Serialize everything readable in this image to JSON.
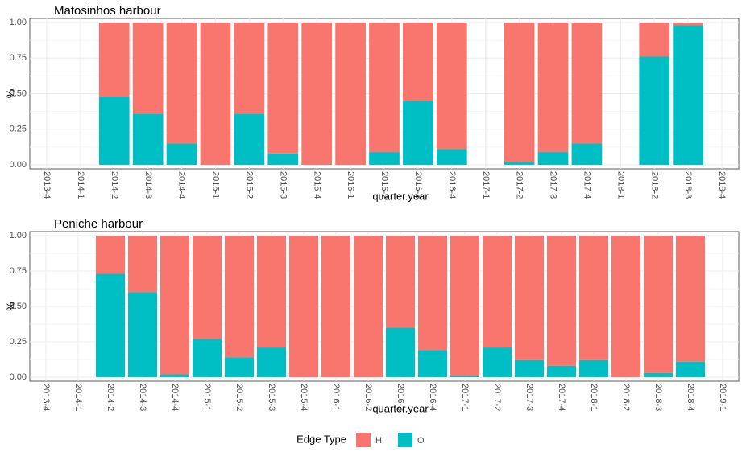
{
  "chart_data": [
    {
      "type": "bar",
      "stacked": true,
      "title": "Matosinhos harbour",
      "x_label": "quarter.year",
      "y_label": "%",
      "categories": [
        "2013-4",
        "2014-1",
        "2014-2",
        "2014-3",
        "2014-4",
        "2015-1",
        "2015-2",
        "2015-3",
        "2015-4",
        "2016-1",
        "2016-2",
        "2016-3",
        "2016-4",
        "2017-1",
        "2017-2",
        "2017-3",
        "2017-4",
        "2018-1",
        "2018-2",
        "2018-3",
        "2018-4"
      ],
      "series": [
        {
          "name": "H",
          "color": "#f8766d",
          "values": [
            null,
            null,
            0.52,
            0.64,
            0.85,
            1,
            0.64,
            0.92,
            1,
            1,
            0.91,
            0.55,
            0.89,
            null,
            0.98,
            0.91,
            0.85,
            null,
            0.24,
            0.02,
            null
          ]
        },
        {
          "name": "O",
          "color": "#00bfc4",
          "values": [
            null,
            null,
            0.48,
            0.36,
            0.15,
            0,
            0.36,
            0.08,
            0,
            0,
            0.09,
            0.45,
            0.11,
            null,
            0.02,
            0.09,
            0.15,
            null,
            0.76,
            0.98,
            null
          ]
        }
      ],
      "ylim": [
        0,
        1
      ],
      "yticks": [
        {
          "value": 0,
          "label": "0.00"
        },
        {
          "value": 0.25,
          "label": "0.25"
        },
        {
          "value": 0.5,
          "label": "0.50"
        },
        {
          "value": 0.75,
          "label": "0.75"
        },
        {
          "value": 1,
          "label": "1.00"
        }
      ],
      "grid": true
    },
    {
      "type": "bar",
      "stacked": true,
      "title": "Peniche harbour",
      "x_label": "quarter.year",
      "y_label": "%",
      "categories": [
        "2013-4",
        "2014-1",
        "2014-2",
        "2014-3",
        "2014-4",
        "2015-1",
        "2015-2",
        "2015-3",
        "2015-4",
        "2016-1",
        "2016-2",
        "2016-3",
        "2016-4",
        "2017-1",
        "2017-2",
        "2017-3",
        "2017-4",
        "2018-1",
        "2018-2",
        "2018-3",
        "2018-4",
        "2019-1"
      ],
      "series": [
        {
          "name": "H",
          "color": "#f8766d",
          "values": [
            null,
            null,
            0.27,
            0.4,
            0.98,
            0.73,
            0.86,
            0.79,
            1,
            1,
            1,
            0.65,
            0.81,
            0.99,
            0.79,
            0.88,
            0.92,
            0.88,
            1,
            0.97,
            0.89,
            null
          ]
        },
        {
          "name": "O",
          "color": "#00bfc4",
          "values": [
            null,
            null,
            0.73,
            0.6,
            0.02,
            0.27,
            0.14,
            0.21,
            0,
            0,
            0,
            0.35,
            0.19,
            0.01,
            0.21,
            0.12,
            0.08,
            0.12,
            0,
            0.03,
            0.11,
            null
          ]
        }
      ],
      "ylim": [
        0,
        1
      ],
      "yticks": [
        {
          "value": 0,
          "label": "0.00"
        },
        {
          "value": 0.25,
          "label": "0.25"
        },
        {
          "value": 0.5,
          "label": "0.50"
        },
        {
          "value": 0.75,
          "label": "0.75"
        },
        {
          "value": 1,
          "label": "1.00"
        }
      ],
      "grid": true
    }
  ],
  "legend": {
    "title": "Edge Type"
  }
}
